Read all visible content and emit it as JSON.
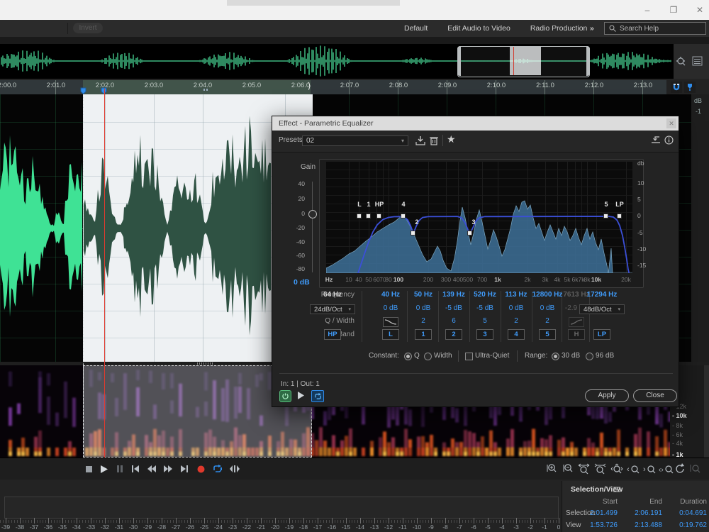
{
  "window": {
    "minimize": "–",
    "maximize": "❐",
    "close": "✕"
  },
  "toolbar": {
    "invert_label": "Invert",
    "workspaces": [
      "Default",
      "Edit Audio to Video",
      "Radio Production"
    ],
    "more_label": "»",
    "search_label": "Search Help"
  },
  "timeline": {
    "labels": [
      "2:00.0",
      "2:01.0",
      "2:02.0",
      "2:03.0",
      "2:04.0",
      "2:05.0",
      "2:06.0",
      "2:07.0",
      "2:08.0",
      "2:09.0",
      "2:10.0",
      "2:11.0",
      "2:12.0",
      "2:13.0"
    ]
  },
  "wave_gutter": {
    "db_label": "dB",
    "first_tick": "-1"
  },
  "spectro_gutter": {
    "labels": [
      "12k",
      "10k",
      "8k",
      "6k",
      "4k",
      "1k"
    ],
    "bold": [
      "10k",
      "1k"
    ]
  },
  "dialog": {
    "title": "Effect - Parametric Equalizer",
    "presets_label": "Presets:",
    "preset_value": "02",
    "gain_label": "Gain",
    "gain_ticks": [
      "40",
      "20",
      "0",
      "-20",
      "-40",
      "-60",
      "-80"
    ],
    "master_gain": "0 dB",
    "db_axis": [
      "db",
      "10",
      "5",
      "0",
      "-5",
      "-10",
      "-15"
    ],
    "freq_axis": [
      "Hz",
      "10",
      "40",
      "50",
      "60",
      "70",
      "80",
      "100",
      "200",
      "300",
      "400",
      "500",
      "700",
      "1k",
      "2k",
      "3k",
      "4k",
      "5k",
      "6k",
      "7k",
      "8k",
      "10k",
      "20k"
    ],
    "freq_axis_bold": [
      "100",
      "1k",
      "10k"
    ],
    "eq_nodes": [
      "L",
      "1",
      "HP",
      "4",
      "2",
      "3",
      "5",
      "LP"
    ],
    "table": {
      "row_labels": [
        "Frequency",
        "Gain",
        "Q / Width",
        "Band"
      ],
      "columns": [
        {
          "band": "HP",
          "freq": "64 Hz",
          "gain": "24dB/Oct",
          "gain_type": "select",
          "q": "",
          "freq_style": "white"
        },
        {
          "band": "L",
          "freq": "40 Hz",
          "gain": "0 dB",
          "q": "shelf-low"
        },
        {
          "band": "1",
          "freq": "50 Hz",
          "gain": "0 dB",
          "q": "2"
        },
        {
          "band": "2",
          "freq": "139 Hz",
          "gain": "-5 dB",
          "q": "6"
        },
        {
          "band": "3",
          "freq": "520 Hz",
          "gain": "-5 dB",
          "q": "5"
        },
        {
          "band": "4",
          "freq": "113 Hz",
          "gain": "0 dB",
          "q": "2"
        },
        {
          "band": "5",
          "freq": "12800 Hz",
          "gain": "0 dB",
          "q": "2"
        },
        {
          "band": "H",
          "freq": "7613 Hz",
          "gain": "-2.9 dB",
          "q": "shelf-high",
          "disabled": true
        },
        {
          "band": "LP",
          "freq": "17294 Hz",
          "gain": "48dB/Oct",
          "gain_type": "select",
          "q": ""
        }
      ]
    },
    "constant_label": "Constant:",
    "q_option": "Q",
    "width_option": "Width",
    "ultra_quiet_label": "Ultra-Quiet",
    "range_label": "Range:",
    "range_30": "30 dB",
    "range_96": "96 dB",
    "io_label": "In: 1 | Out: 1",
    "apply_label": "Apply",
    "close_label": "Close"
  },
  "selection_view": {
    "title": "Selection/View",
    "headers": [
      "Start",
      "End",
      "Duration"
    ],
    "rows": [
      {
        "label": "Selection",
        "start": "2:01.499",
        "end": "2:06.191",
        "duration": "0:04.691"
      },
      {
        "label": "View",
        "start": "1:53.726",
        "end": "2:13.488",
        "duration": "0:19.762"
      }
    ]
  },
  "meter": {
    "labels": [
      "-39",
      "-38",
      "-37",
      "-36",
      "-35",
      "-34",
      "-33",
      "-32",
      "-31",
      "-30",
      "-29",
      "-28",
      "-27",
      "-26",
      "-25",
      "-24",
      "-23",
      "-22",
      "-21",
      "-20",
      "-19",
      "-18",
      "-17",
      "-16",
      "-15",
      "-14",
      "-13",
      "-12",
      "-11",
      "-10",
      "-9",
      "-8",
      "-7",
      "-6",
      "-5",
      "-4",
      "-3",
      "-2",
      "-1",
      "0"
    ]
  }
}
